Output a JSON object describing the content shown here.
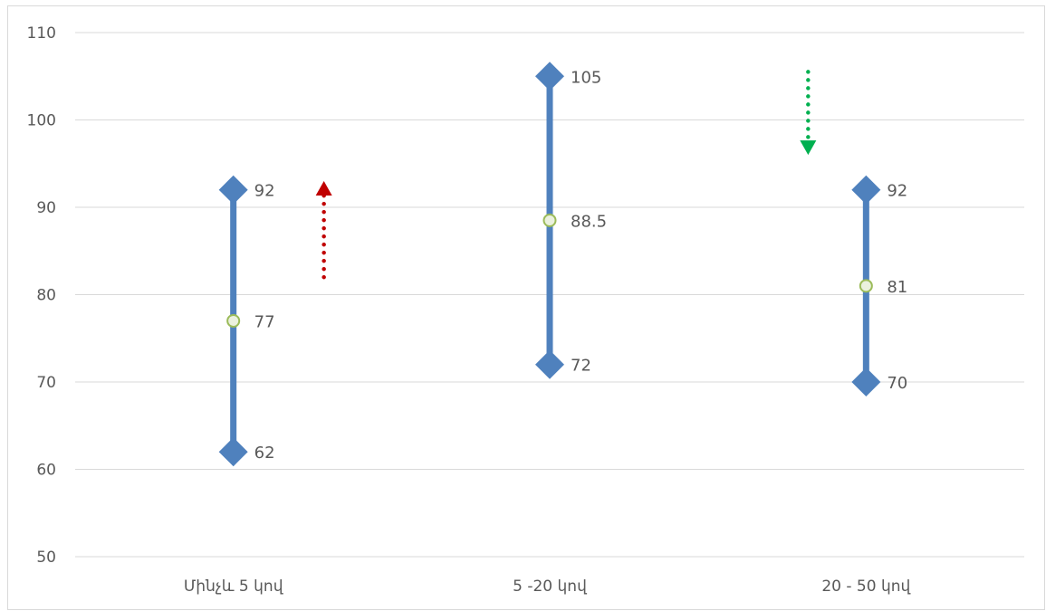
{
  "chart_data": {
    "type": "high-low-mean",
    "categories": [
      "Մինչև 5 կով",
      "5 -20 կով",
      "20 - 50 կով"
    ],
    "series": [
      {
        "values": [
          92,
          105,
          92
        ]
      },
      {
        "values": [
          77,
          88.5,
          81
        ]
      },
      {
        "values": [
          62,
          72,
          70
        ]
      }
    ],
    "data_labels": [
      [
        "92",
        "77",
        "62"
      ],
      [
        "105",
        "88.5",
        "72"
      ],
      [
        "92",
        "81",
        "70"
      ]
    ],
    "ylim": [
      50,
      110
    ],
    "yticks": [
      "110",
      "100",
      "90",
      "80",
      "70",
      "60",
      "50"
    ],
    "grid": true,
    "legend": "none",
    "annotations": [
      {
        "kind": "arrow-up",
        "category_index": 0,
        "from": 82,
        "to": 93
      },
      {
        "kind": "arrow-down",
        "category_index": 2,
        "from": 105.5,
        "to": 96
      }
    ],
    "colors": {
      "range_line": "#4f81bd",
      "marker": "#4f81bd",
      "mean_fill": "#ebf1de",
      "mean_stroke": "#9bbb59",
      "arrow_up": "#c00000",
      "arrow_down": "#00b050",
      "grid": "#d9d9d9"
    }
  }
}
